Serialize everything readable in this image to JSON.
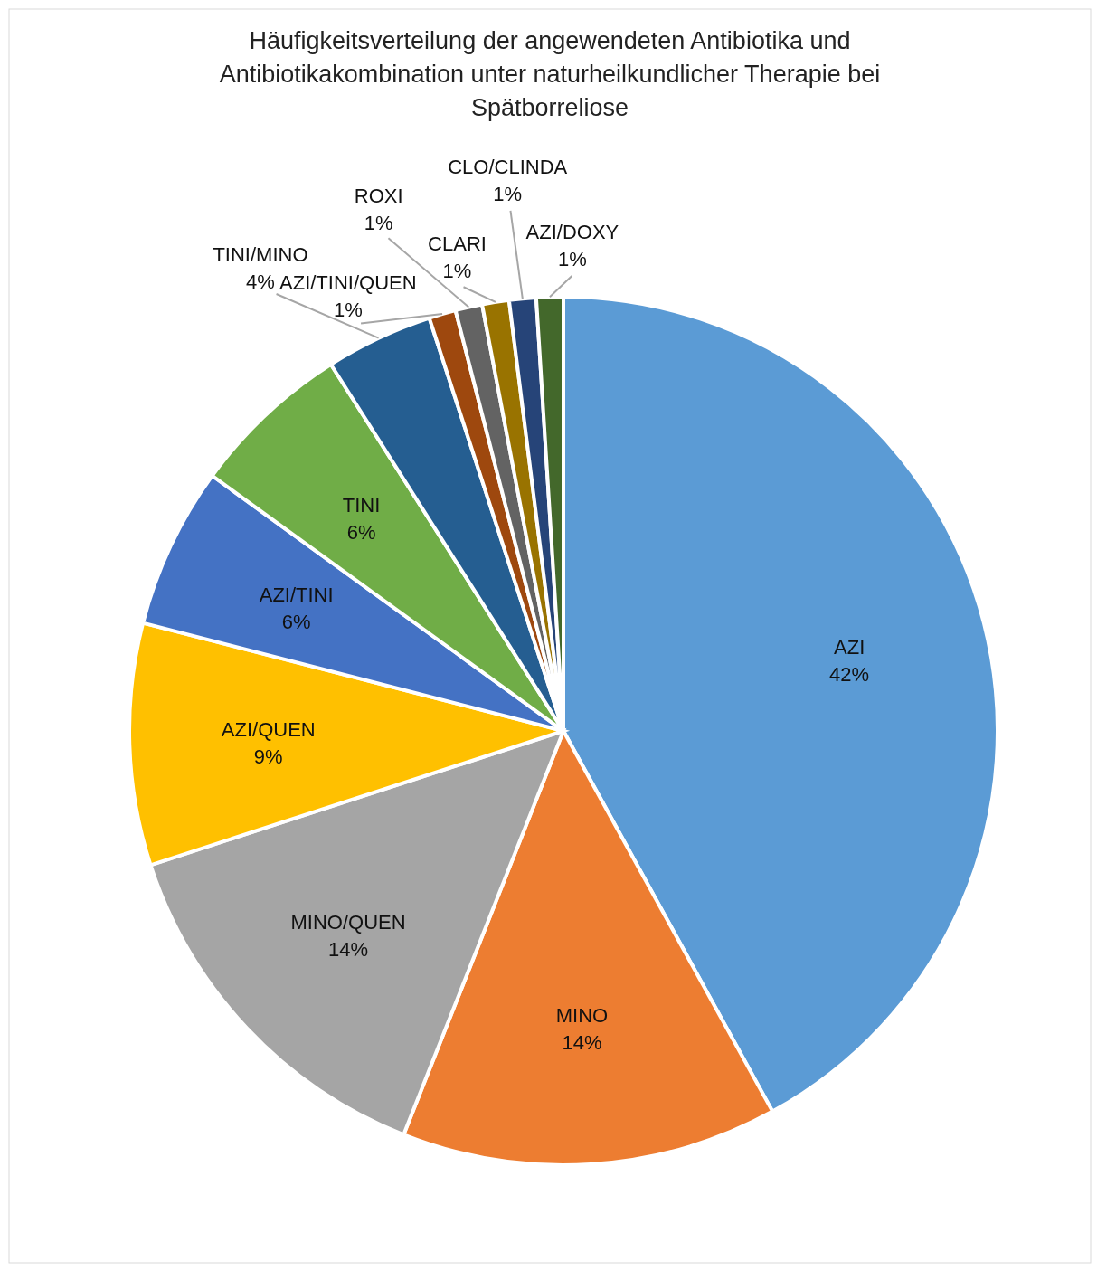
{
  "chart_data": {
    "type": "pie",
    "title": "Häufigkeitsverteilung der angewendeten Antibiotika und Antibiotikakombination unter naturheilkundlicher Therapie bei Spätborreliose",
    "categories": [
      "AZI",
      "MINO",
      "MINO/QUEN",
      "AZI/QUEN",
      "AZI/TINI",
      "TINI",
      "TINI/MINO",
      "AZI/TINI/QUEN",
      "ROXI",
      "CLARI",
      "CLO/CLINDA",
      "AZI/DOXY"
    ],
    "values": [
      42,
      14,
      14,
      9,
      6,
      6,
      4,
      1,
      1,
      1,
      1,
      1
    ],
    "colors": [
      "#5b9bd5",
      "#ed7d31",
      "#a5a5a5",
      "#ffc000",
      "#4472c4",
      "#70ad47",
      "#255e91",
      "#9e480e",
      "#636363",
      "#997300",
      "#264478",
      "#43682b"
    ],
    "value_labels": [
      "42%",
      "14%",
      "14%",
      "9%",
      "6%",
      "6%",
      "4%",
      "1%",
      "1%",
      "1%",
      "1%",
      "1%"
    ]
  }
}
